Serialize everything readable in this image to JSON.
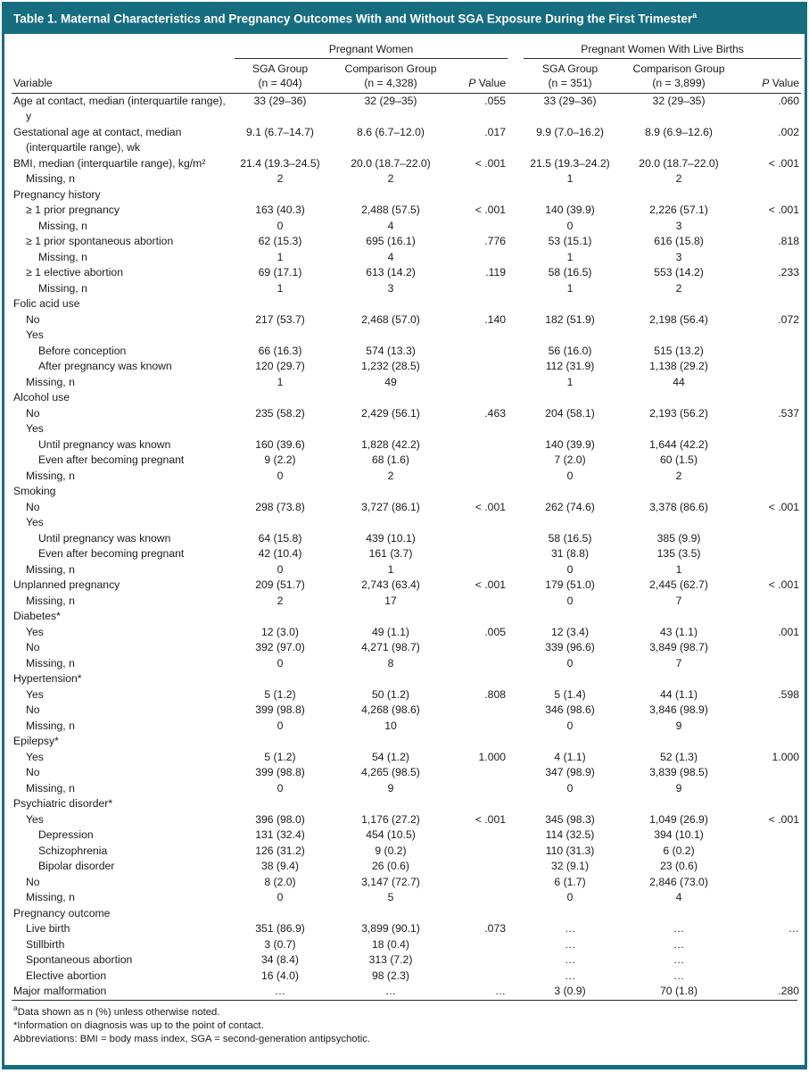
{
  "title": {
    "text": "Table 1. Maternal Characteristics and Pregnancy Outcomes With and Without SGA Exposure During the First Trimester",
    "sup": "a"
  },
  "colors": {
    "accent_teal": "#166d80",
    "header_text": "#ffffff",
    "rule": "#2a2a2a"
  },
  "header": {
    "group1": "Pregnant Women",
    "group2": "Pregnant Women With Live Births",
    "variable": "Variable",
    "sga1_1": "SGA Group",
    "sga1_2": "(n = 404)",
    "comp1_1": "Comparison Group",
    "comp1_2": "(n = 4,328)",
    "p_italic": "P",
    "p_rest": " Value",
    "sga2_1": "SGA Group",
    "sga2_2": "(n = 351)",
    "comp2_1": "Comparison Group",
    "comp2_2": "(n = 3,899)"
  },
  "rows": [
    {
      "label": "Age at contact, median (interquartile range), y",
      "indent": 0,
      "values": [
        "33 (29–36)",
        "32 (29–35)",
        ".055",
        "33 (29–36)",
        "32 (29–35)",
        ".060"
      ]
    },
    {
      "label": "Gestational age at contact, median (interquartile range), wk",
      "indent": 0,
      "values": [
        "9.1 (6.7–14.7)",
        "8.6 (6.7–12.0)",
        ".017",
        "9.9 (7.0–16.2)",
        "8.9 (6.9–12.6)",
        ".002"
      ]
    },
    {
      "label": "BMI, median (interquartile range), kg/m²",
      "indent": 0,
      "values": [
        "21.4 (19.3–24.5)",
        "20.0 (18.7–22.0)",
        "< .001",
        "21.5 (19.3–24.2)",
        "20.0 (18.7–22.0)",
        "< .001"
      ]
    },
    {
      "label": "Missing, n",
      "indent": 1,
      "values": [
        "2",
        "2",
        "",
        "1",
        "2",
        ""
      ]
    },
    {
      "label": "Pregnancy history",
      "indent": 0,
      "values": [
        "",
        "",
        "",
        "",
        "",
        ""
      ]
    },
    {
      "label": "≥ 1 prior pregnancy",
      "indent": 1,
      "values": [
        "163 (40.3)",
        "2,488 (57.5)",
        "< .001",
        "140 (39.9)",
        "2,226 (57.1)",
        "< .001"
      ]
    },
    {
      "label": "Missing, n",
      "indent": 2,
      "values": [
        "0",
        "4",
        "",
        "0",
        "3",
        ""
      ]
    },
    {
      "label": "≥ 1 prior spontaneous abortion",
      "indent": 1,
      "values": [
        "62 (15.3)",
        "695 (16.1)",
        ".776",
        "53 (15.1)",
        "616 (15.8)",
        ".818"
      ]
    },
    {
      "label": "Missing, n",
      "indent": 2,
      "values": [
        "1",
        "4",
        "",
        "1",
        "3",
        ""
      ]
    },
    {
      "label": "≥ 1 elective abortion",
      "indent": 1,
      "values": [
        "69 (17.1)",
        "613 (14.2)",
        ".119",
        "58 (16.5)",
        "553 (14.2)",
        ".233"
      ]
    },
    {
      "label": "Missing, n",
      "indent": 2,
      "values": [
        "1",
        "3",
        "",
        "1",
        "2",
        ""
      ]
    },
    {
      "label": "Folic acid use",
      "indent": 0,
      "values": [
        "",
        "",
        "",
        "",
        "",
        ""
      ]
    },
    {
      "label": "No",
      "indent": 1,
      "values": [
        "217 (53.7)",
        "2,468 (57.0)",
        ".140",
        "182 (51.9)",
        "2,198 (56.4)",
        ".072"
      ]
    },
    {
      "label": "Yes",
      "indent": 1,
      "values": [
        "",
        "",
        "",
        "",
        "",
        ""
      ]
    },
    {
      "label": "Before conception",
      "indent": 2,
      "values": [
        "66 (16.3)",
        "574 (13.3)",
        "",
        "56 (16.0)",
        "515 (13.2)",
        ""
      ]
    },
    {
      "label": "After pregnancy was known",
      "indent": 2,
      "values": [
        "120 (29.7)",
        "1,232 (28.5)",
        "",
        "112 (31.9)",
        "1,138 (29.2)",
        ""
      ]
    },
    {
      "label": "Missing, n",
      "indent": 1,
      "values": [
        "1",
        "49",
        "",
        "1",
        "44",
        ""
      ]
    },
    {
      "label": "Alcohol use",
      "indent": 0,
      "values": [
        "",
        "",
        "",
        "",
        "",
        ""
      ]
    },
    {
      "label": "No",
      "indent": 1,
      "values": [
        "235 (58.2)",
        "2,429 (56.1)",
        ".463",
        "204 (58.1)",
        "2,193 (56.2)",
        ".537"
      ]
    },
    {
      "label": "Yes",
      "indent": 1,
      "values": [
        "",
        "",
        "",
        "",
        "",
        ""
      ]
    },
    {
      "label": "Until pregnancy was known",
      "indent": 2,
      "values": [
        "160 (39.6)",
        "1,828 (42.2)",
        "",
        "140 (39.9)",
        "1,644 (42.2)",
        ""
      ]
    },
    {
      "label": "Even after becoming pregnant",
      "indent": 2,
      "values": [
        "9 (2.2)",
        "68 (1.6)",
        "",
        "7 (2.0)",
        "60 (1.5)",
        ""
      ]
    },
    {
      "label": "Missing, n",
      "indent": 1,
      "values": [
        "0",
        "2",
        "",
        "0",
        "2",
        ""
      ]
    },
    {
      "label": "Smoking",
      "indent": 0,
      "values": [
        "",
        "",
        "",
        "",
        "",
        ""
      ]
    },
    {
      "label": "No",
      "indent": 1,
      "values": [
        "298 (73.8)",
        "3,727 (86.1)",
        "< .001",
        "262 (74.6)",
        "3,378 (86.6)",
        "< .001"
      ]
    },
    {
      "label": "Yes",
      "indent": 1,
      "values": [
        "",
        "",
        "",
        "",
        "",
        ""
      ]
    },
    {
      "label": "Until pregnancy was known",
      "indent": 2,
      "values": [
        "64 (15.8)",
        "439 (10.1)",
        "",
        "58 (16.5)",
        "385 (9.9)",
        ""
      ]
    },
    {
      "label": "Even after becoming pregnant",
      "indent": 2,
      "values": [
        "42 (10.4)",
        "161 (3.7)",
        "",
        "31 (8.8)",
        "135 (3.5)",
        ""
      ]
    },
    {
      "label": "Missing, n",
      "indent": 1,
      "values": [
        "0",
        "1",
        "",
        "0",
        "1",
        ""
      ]
    },
    {
      "label": "Unplanned pregnancy",
      "indent": 0,
      "values": [
        "209 (51.7)",
        "2,743 (63.4)",
        "< .001",
        "179 (51.0)",
        "2,445 (62.7)",
        "< .001"
      ]
    },
    {
      "label": "Missing, n",
      "indent": 1,
      "values": [
        "2",
        "17",
        "",
        "0",
        "7",
        ""
      ]
    },
    {
      "label": "Diabetes*",
      "indent": 0,
      "values": [
        "",
        "",
        "",
        "",
        "",
        ""
      ]
    },
    {
      "label": "Yes",
      "indent": 1,
      "values": [
        "12 (3.0)",
        "49 (1.1)",
        ".005",
        "12 (3.4)",
        "43 (1.1)",
        ".001"
      ]
    },
    {
      "label": "No",
      "indent": 1,
      "values": [
        "392 (97.0)",
        "4,271 (98.7)",
        "",
        "339 (96.6)",
        "3,849 (98.7)",
        ""
      ]
    },
    {
      "label": "Missing, n",
      "indent": 1,
      "values": [
        "0",
        "8",
        "",
        "0",
        "7",
        ""
      ]
    },
    {
      "label": "Hypertension*",
      "indent": 0,
      "values": [
        "",
        "",
        "",
        "",
        "",
        ""
      ]
    },
    {
      "label": "Yes",
      "indent": 1,
      "values": [
        "5 (1.2)",
        "50 (1.2)",
        ".808",
        "5 (1.4)",
        "44 (1.1)",
        ".598"
      ]
    },
    {
      "label": "No",
      "indent": 1,
      "values": [
        "399 (98.8)",
        "4,268 (98.6)",
        "",
        "346 (98.6)",
        "3,846 (98.9)",
        ""
      ]
    },
    {
      "label": "Missing, n",
      "indent": 1,
      "values": [
        "0",
        "10",
        "",
        "0",
        "9",
        ""
      ]
    },
    {
      "label": "Epilepsy*",
      "indent": 0,
      "values": [
        "",
        "",
        "",
        "",
        "",
        ""
      ]
    },
    {
      "label": "Yes",
      "indent": 1,
      "values": [
        "5 (1.2)",
        "54 (1.2)",
        "1.000",
        "4 (1.1)",
        "52 (1.3)",
        "1.000"
      ]
    },
    {
      "label": "No",
      "indent": 1,
      "values": [
        "399 (98.8)",
        "4,265 (98.5)",
        "",
        "347 (98.9)",
        "3,839 (98.5)",
        ""
      ]
    },
    {
      "label": "Missing, n",
      "indent": 1,
      "values": [
        "0",
        "9",
        "",
        "0",
        "9",
        ""
      ]
    },
    {
      "label": "Psychiatric disorder*",
      "indent": 0,
      "values": [
        "",
        "",
        "",
        "",
        "",
        ""
      ]
    },
    {
      "label": "Yes",
      "indent": 1,
      "values": [
        "396 (98.0)",
        "1,176 (27.2)",
        "< .001",
        "345 (98.3)",
        "1,049 (26.9)",
        "< .001"
      ]
    },
    {
      "label": "Depression",
      "indent": 2,
      "values": [
        "131 (32.4)",
        "454 (10.5)",
        "",
        "114 (32.5)",
        "394 (10.1)",
        ""
      ]
    },
    {
      "label": "Schizophrenia",
      "indent": 2,
      "values": [
        "126 (31.2)",
        "9 (0.2)",
        "",
        "110 (31.3)",
        "6 (0.2)",
        ""
      ]
    },
    {
      "label": "Bipolar disorder",
      "indent": 2,
      "values": [
        "38 (9.4)",
        "26 (0.6)",
        "",
        "32 (9.1)",
        "23 (0.6)",
        ""
      ]
    },
    {
      "label": "No",
      "indent": 1,
      "values": [
        "8 (2.0)",
        "3,147 (72.7)",
        "",
        "6 (1.7)",
        "2,846 (73.0)",
        ""
      ]
    },
    {
      "label": "Missing, n",
      "indent": 1,
      "values": [
        "0",
        "5",
        "",
        "0",
        "4",
        ""
      ]
    },
    {
      "label": "Pregnancy outcome",
      "indent": 0,
      "values": [
        "",
        "",
        "",
        "",
        "",
        ""
      ]
    },
    {
      "label": "Live birth",
      "indent": 1,
      "values": [
        "351 (86.9)",
        "3,899 (90.1)",
        ".073",
        "…",
        "…",
        "…"
      ]
    },
    {
      "label": "Stillbirth",
      "indent": 1,
      "values": [
        "3 (0.7)",
        "18 (0.4)",
        "",
        "…",
        "…",
        ""
      ]
    },
    {
      "label": "Spontaneous abortion",
      "indent": 1,
      "values": [
        "34 (8.4)",
        "313 (7.2)",
        "",
        "…",
        "…",
        ""
      ]
    },
    {
      "label": "Elective abortion",
      "indent": 1,
      "values": [
        "16 (4.0)",
        "98 (2.3)",
        "",
        "…",
        "…",
        ""
      ]
    },
    {
      "label": "Major malformation",
      "indent": 0,
      "values": [
        "…",
        "…",
        "…",
        "3 (0.9)",
        "70 (1.8)",
        ".280"
      ]
    }
  ],
  "footnotes": [
    {
      "sup": "a",
      "text": "Data shown as n (%) unless otherwise noted."
    },
    {
      "sup": "",
      "text": "*Information on diagnosis was up to the point of contact."
    },
    {
      "sup": "",
      "text": "Abbreviations: BMI = body mass index, SGA = second-generation antipsychotic."
    }
  ]
}
